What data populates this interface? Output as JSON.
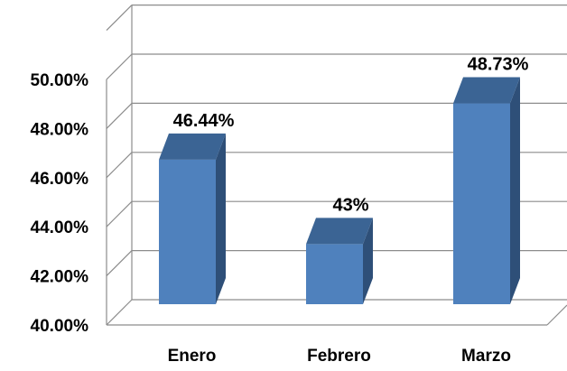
{
  "chart_data": {
    "type": "bar",
    "style": "3d-column",
    "categories": [
      "Enero",
      "Febrero",
      "Marzo"
    ],
    "values": [
      46.44,
      43.0,
      48.73
    ],
    "data_labels": [
      "46.44%",
      "43%",
      "48.73%"
    ],
    "y_ticks": [
      "40.00%",
      "42.00%",
      "44.00%",
      "46.00%",
      "48.00%",
      "50.00%"
    ],
    "ylim": [
      40,
      52
    ],
    "grid": true,
    "legend": "none",
    "bar_color": "#4F81BD",
    "bar_top_color": "#3B6494",
    "bar_side_color": "#2E4F78",
    "grid_color": "#8C8C8C"
  }
}
